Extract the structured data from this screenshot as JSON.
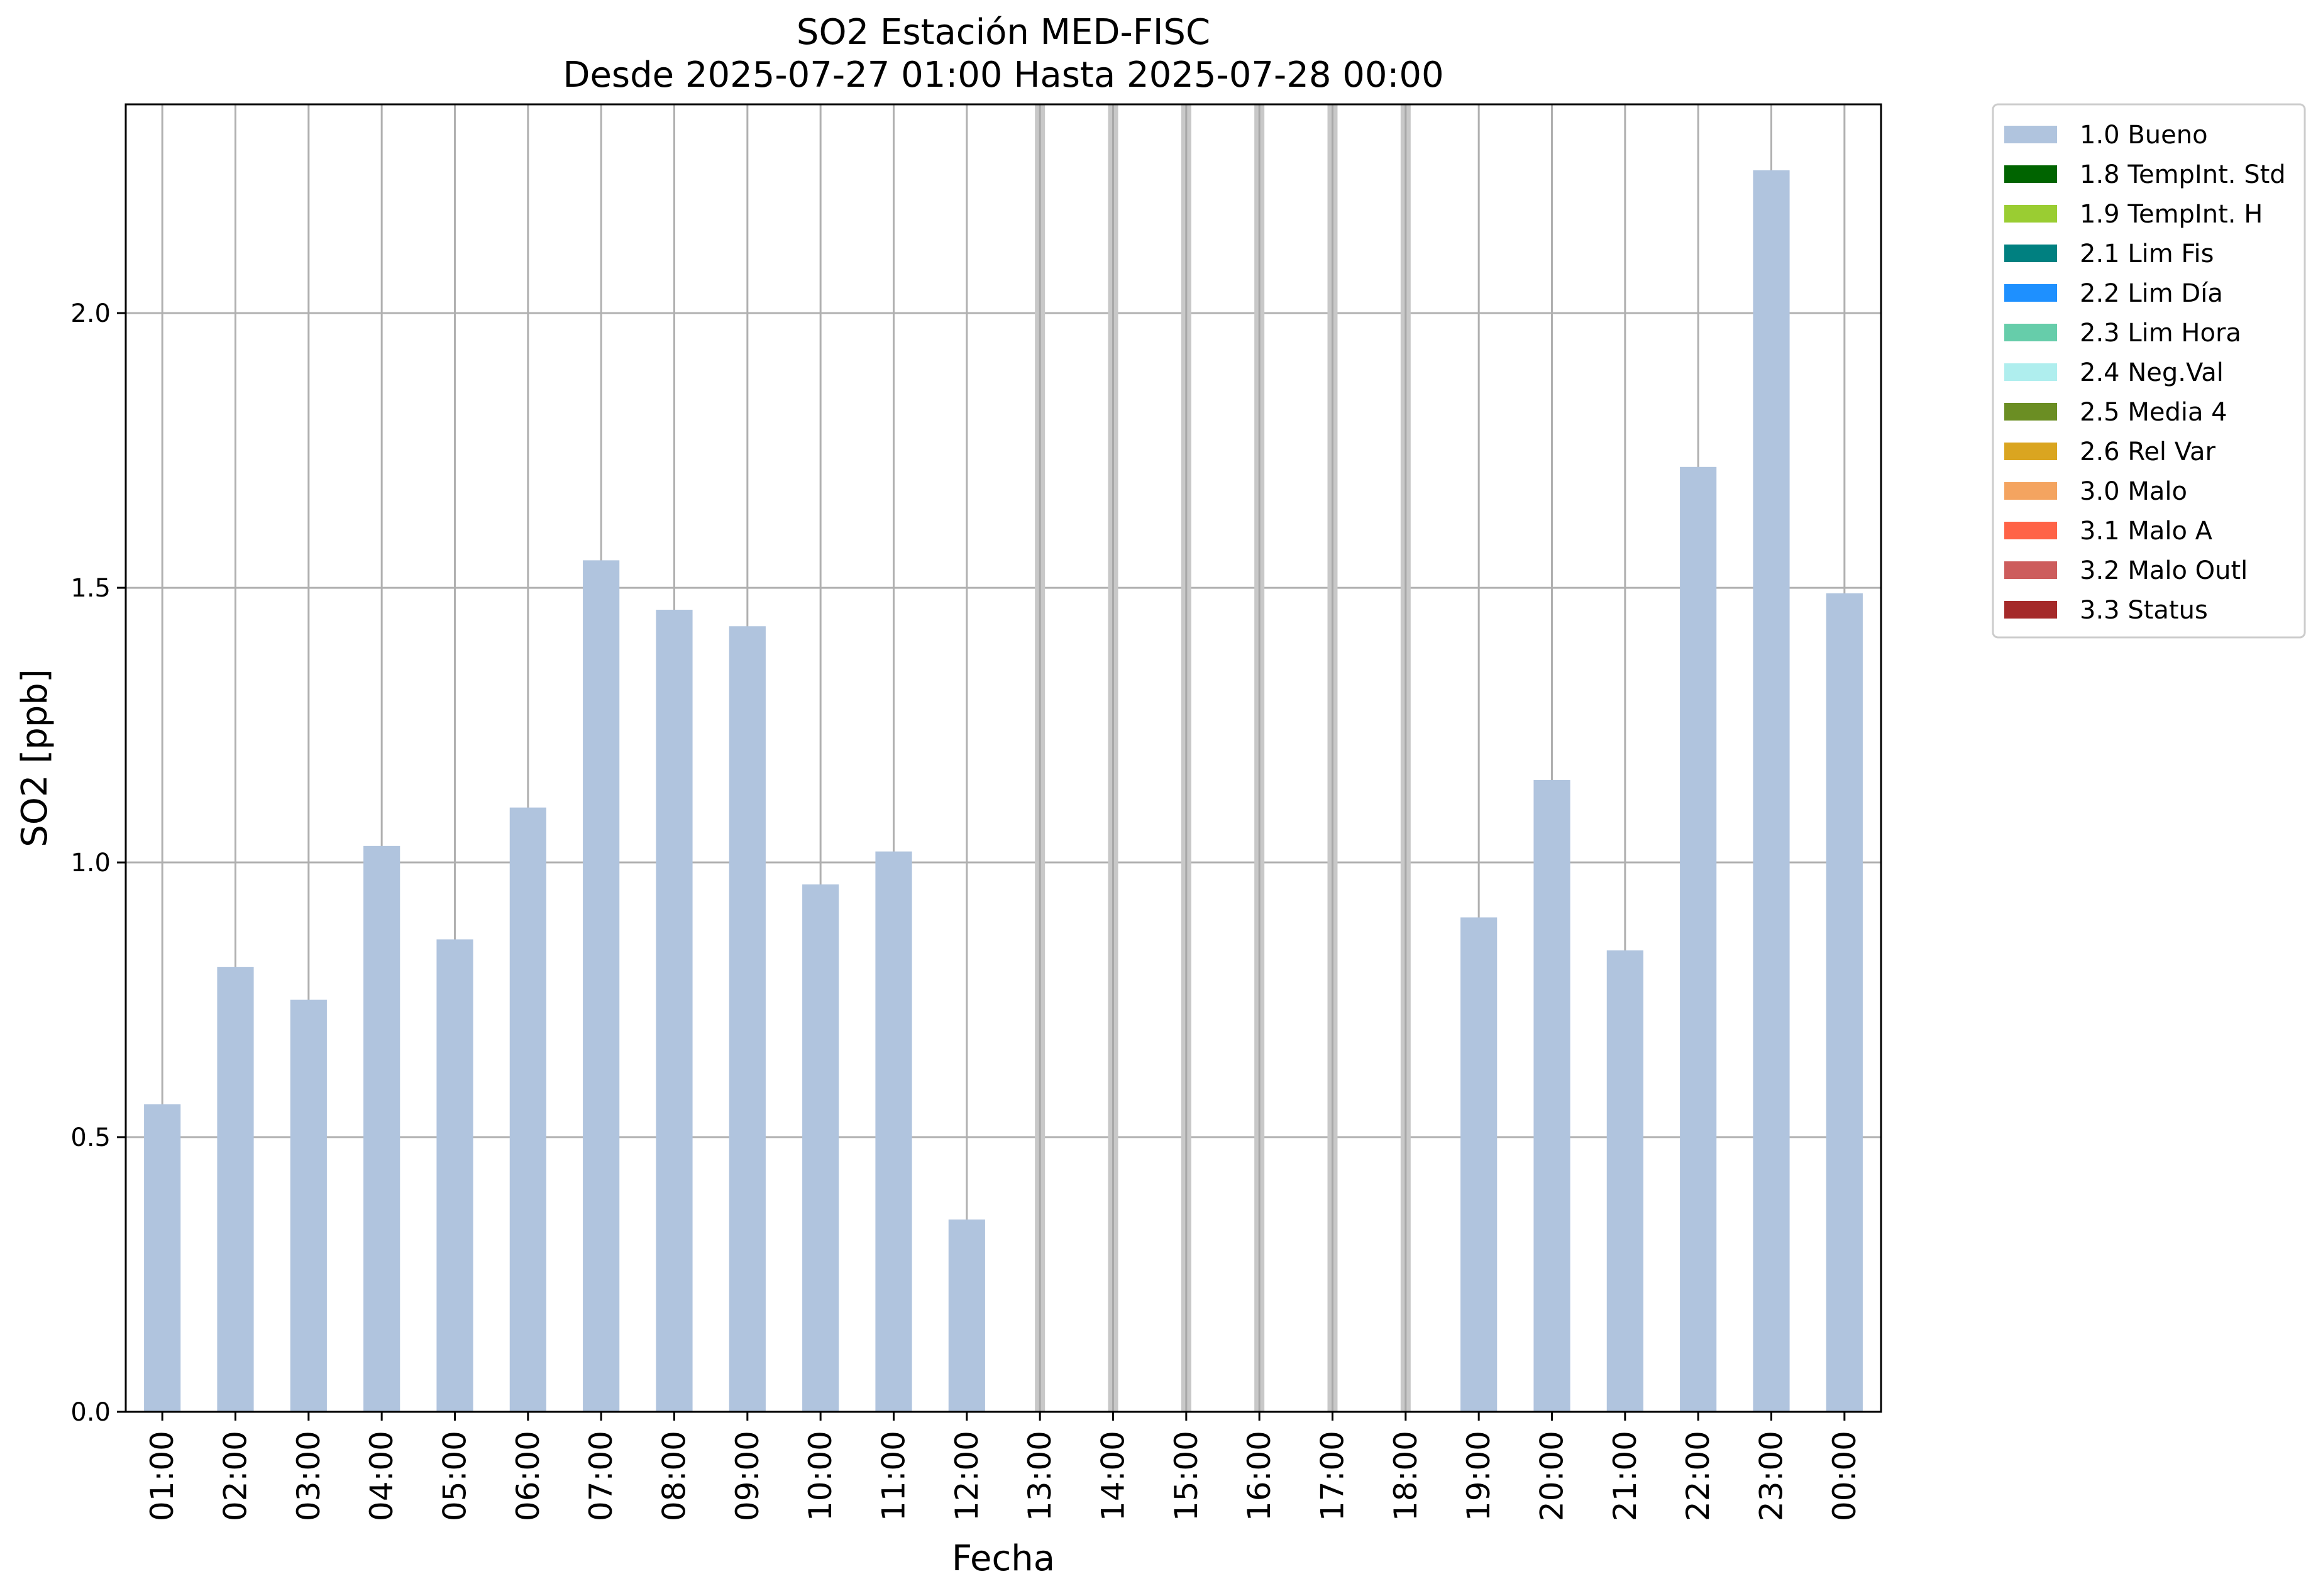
{
  "chart_data": {
    "type": "bar",
    "title": "SO2 Estación MED-FISC",
    "subtitle": "Desde 2025-07-27 01:00 Hasta 2025-07-28 00:00",
    "xlabel": "Fecha",
    "ylabel": "SO2 [ppb]",
    "ylim": [
      0,
      2.38
    ],
    "yticks": [
      0.0,
      0.5,
      1.0,
      1.5,
      2.0
    ],
    "ytick_labels": [
      "0.0",
      "0.5",
      "1.0",
      "1.5",
      "2.0"
    ],
    "grid": true,
    "categories": [
      "01:00",
      "02:00",
      "03:00",
      "04:00",
      "05:00",
      "06:00",
      "07:00",
      "08:00",
      "09:00",
      "10:00",
      "11:00",
      "12:00",
      "13:00",
      "14:00",
      "15:00",
      "16:00",
      "17:00",
      "18:00",
      "19:00",
      "20:00",
      "21:00",
      "22:00",
      "23:00",
      "00:00"
    ],
    "series": [
      {
        "name": "1.0 Bueno",
        "color": "#b0c4de",
        "values": [
          0.56,
          0.81,
          0.75,
          1.03,
          0.86,
          1.1,
          1.55,
          1.46,
          1.43,
          0.96,
          1.02,
          0.35,
          null,
          null,
          null,
          null,
          null,
          null,
          0.9,
          1.15,
          0.84,
          1.72,
          2.26,
          1.49
        ]
      }
    ],
    "missing_markers": [
      "13:00",
      "14:00",
      "15:00",
      "16:00",
      "17:00",
      "18:00"
    ],
    "missing_marker_color": "#c8c8c8",
    "legend_placement": "outside-top-right",
    "legend": [
      {
        "label": "1.0 Bueno",
        "color": "#b0c4de"
      },
      {
        "label": "1.8 TempInt. Std",
        "color": "#006400"
      },
      {
        "label": "1.9 TempInt. H",
        "color": "#9acd32"
      },
      {
        "label": "2.1 Lim Fis",
        "color": "#008080"
      },
      {
        "label": "2.2 Lim Día",
        "color": "#1e90ff"
      },
      {
        "label": "2.3 Lim Hora",
        "color": "#66cdaa"
      },
      {
        "label": "2.4 Neg.Val",
        "color": "#afeeee"
      },
      {
        "label": "2.5 Media 4",
        "color": "#6b8e23"
      },
      {
        "label": "2.6 Rel Var",
        "color": "#daa520"
      },
      {
        "label": "3.0 Malo",
        "color": "#f4a460"
      },
      {
        "label": "3.1 Malo A",
        "color": "#ff6347"
      },
      {
        "label": "3.2 Malo Outl",
        "color": "#cd5c5c"
      },
      {
        "label": "3.3 Status",
        "color": "#a52a2a"
      }
    ]
  }
}
